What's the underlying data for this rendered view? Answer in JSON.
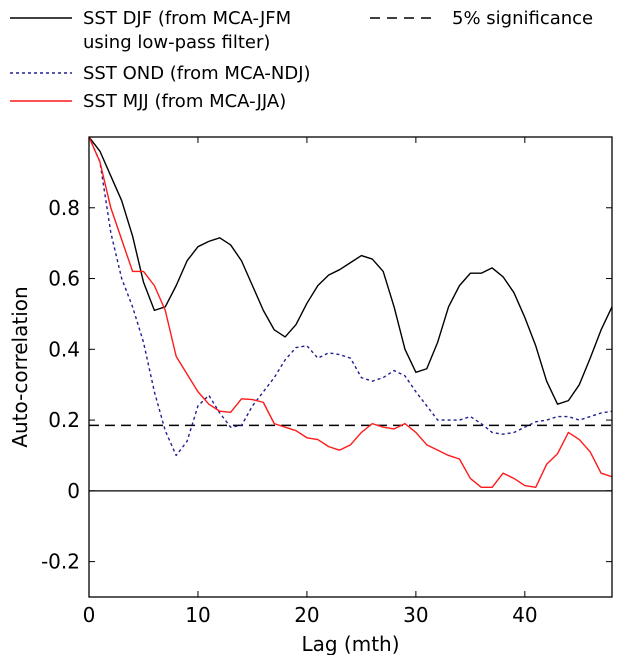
{
  "chart_data": {
    "type": "line",
    "xlabel": "Lag (mth)",
    "ylabel": "Auto-correlation",
    "xlim": [
      0,
      48
    ],
    "ylim": [
      -0.3,
      1.0
    ],
    "xticks": [
      0,
      10,
      20,
      30,
      40
    ],
    "xtick_labels": [
      "0",
      "10",
      "20",
      "30",
      "40"
    ],
    "yticks": [
      -0.2,
      0,
      0.2,
      0.4,
      0.6,
      0.8
    ],
    "ytick_labels": [
      "-0.2",
      "0",
      "0.2",
      "0.4",
      "0.6",
      "0.8"
    ],
    "grid": false,
    "legend_placement": "top, above plot",
    "zero_line": 0,
    "significance": {
      "name": "5% significance",
      "value": 0.185,
      "style": "dashed",
      "color": "#000000"
    },
    "series": [
      {
        "name_lines": [
          "SST DJF (from MCA-JFM",
          "using low-pass filter)"
        ],
        "style": "solid",
        "color": "#000000",
        "x": [
          0,
          1,
          2,
          3,
          4,
          5,
          6,
          7,
          8,
          9,
          10,
          11,
          12,
          13,
          14,
          15,
          16,
          17,
          18,
          19,
          20,
          21,
          22,
          23,
          24,
          25,
          26,
          27,
          28,
          29,
          30,
          31,
          32,
          33,
          34,
          35,
          36,
          37,
          38,
          39,
          40,
          41,
          42,
          43,
          44,
          45,
          46,
          47,
          48
        ],
        "y": [
          1.0,
          0.96,
          0.89,
          0.82,
          0.72,
          0.59,
          0.51,
          0.52,
          0.58,
          0.65,
          0.69,
          0.705,
          0.715,
          0.695,
          0.65,
          0.58,
          0.51,
          0.455,
          0.435,
          0.47,
          0.53,
          0.58,
          0.61,
          0.625,
          0.645,
          0.665,
          0.655,
          0.62,
          0.52,
          0.4,
          0.335,
          0.345,
          0.42,
          0.52,
          0.58,
          0.615,
          0.615,
          0.63,
          0.605,
          0.56,
          0.49,
          0.41,
          0.31,
          0.245,
          0.255,
          0.3,
          0.375,
          0.455,
          0.52
        ]
      },
      {
        "name": "SST OND (from MCA-NDJ)",
        "style": "dotted",
        "color": "#1f1f8f",
        "x": [
          0,
          1,
          2,
          3,
          4,
          5,
          6,
          7,
          8,
          9,
          10,
          11,
          12,
          13,
          14,
          15,
          16,
          17,
          18,
          19,
          20,
          21,
          22,
          23,
          24,
          25,
          26,
          27,
          28,
          29,
          30,
          31,
          32,
          33,
          34,
          35,
          36,
          37,
          38,
          39,
          40,
          41,
          42,
          43,
          44,
          45,
          46,
          47,
          48
        ],
        "y": [
          1.0,
          0.93,
          0.73,
          0.6,
          0.52,
          0.42,
          0.28,
          0.17,
          0.1,
          0.14,
          0.24,
          0.27,
          0.22,
          0.18,
          0.185,
          0.24,
          0.28,
          0.32,
          0.37,
          0.405,
          0.41,
          0.375,
          0.39,
          0.385,
          0.375,
          0.32,
          0.31,
          0.32,
          0.34,
          0.325,
          0.28,
          0.24,
          0.2,
          0.2,
          0.2,
          0.21,
          0.19,
          0.165,
          0.16,
          0.165,
          0.18,
          0.195,
          0.2,
          0.21,
          0.21,
          0.2,
          0.21,
          0.22,
          0.225
        ]
      },
      {
        "name": "SST MJJ (from MCA-JJA)",
        "style": "solid",
        "color": "#ff1a1a",
        "x": [
          0,
          1,
          2,
          3,
          4,
          5,
          6,
          7,
          8,
          9,
          10,
          11,
          12,
          13,
          14,
          15,
          16,
          17,
          18,
          19,
          20,
          21,
          22,
          23,
          24,
          25,
          26,
          27,
          28,
          29,
          30,
          31,
          32,
          33,
          34,
          35,
          36,
          37,
          38,
          39,
          40,
          41,
          42,
          43,
          44,
          45,
          46,
          47,
          48
        ],
        "y": [
          1.0,
          0.93,
          0.8,
          0.71,
          0.62,
          0.62,
          0.58,
          0.51,
          0.38,
          0.33,
          0.28,
          0.245,
          0.225,
          0.222,
          0.26,
          0.258,
          0.25,
          0.19,
          0.18,
          0.17,
          0.15,
          0.145,
          0.125,
          0.115,
          0.13,
          0.165,
          0.19,
          0.18,
          0.175,
          0.19,
          0.165,
          0.13,
          0.115,
          0.1,
          0.09,
          0.035,
          0.01,
          0.01,
          0.05,
          0.035,
          0.015,
          0.01,
          0.075,
          0.105,
          0.165,
          0.145,
          0.11,
          0.05,
          0.04
        ]
      }
    ]
  }
}
